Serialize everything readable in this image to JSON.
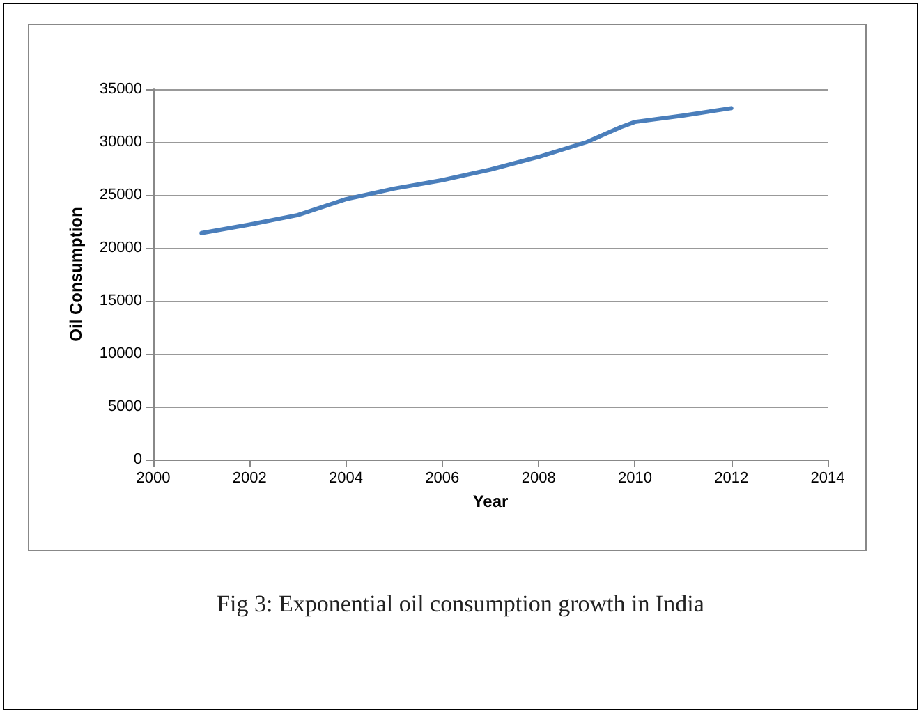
{
  "chart_data": {
    "type": "line",
    "xlabel": "Year",
    "ylabel": "Oil Consumption",
    "annotations": [
      "Fig 3: Exponential oil consumption growth in India"
    ],
    "x": [
      2001,
      2002,
      2003,
      2004,
      2005,
      2006,
      2007,
      2008,
      2009,
      2009.7,
      2010,
      2011,
      2012
    ],
    "series": [
      {
        "color": "#4a7ebb",
        "values": [
          21400,
          22200,
          23100,
          24600,
          25600,
          26400,
          27400,
          28600,
          30000,
          31400,
          31900,
          32500,
          33200
        ]
      }
    ],
    "xlim": [
      2000,
      2014
    ],
    "xticks": [
      2000,
      2002,
      2004,
      2006,
      2008,
      2010,
      2012,
      2014
    ],
    "ylim": [
      0,
      35000
    ],
    "yticks": [
      0,
      5000,
      10000,
      15000,
      20000,
      25000,
      30000,
      35000
    ],
    "grid": "y",
    "marker": "none",
    "line_style": "solid"
  }
}
